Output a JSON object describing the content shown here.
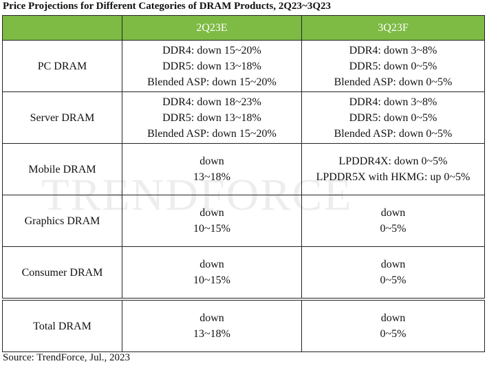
{
  "title": "Price Projections for Different Categories of DRAM Products, 2Q23~3Q23",
  "watermark": "TRENDFORCE",
  "table": {
    "header": [
      "2Q23E",
      "3Q23F"
    ],
    "rows": [
      {
        "label": "PC DRAM",
        "cells": [
          [
            "DDR4: down 15~20%",
            "DDR5: down 13~18%",
            "Blended ASP: down 15~20%"
          ],
          [
            "DDR4: down 3~8%",
            "DDR5: down 0~5%",
            "Blended ASP: down 0~5%"
          ]
        ]
      },
      {
        "label": "Server DRAM",
        "cells": [
          [
            "DDR4: down 18~23%",
            "DDR5: down 13~18%",
            "Blended ASP: down 15~20%"
          ],
          [
            "DDR4: down 3~8%",
            "DDR5: down 0~5%",
            "Blended ASP: down 0~5%"
          ]
        ]
      },
      {
        "label": "Mobile DRAM",
        "cells": [
          [
            "down",
            "13~18%"
          ],
          [
            "LPDDR4X: down 0~5%",
            "LPDDR5X with HKMG: up 0~5%"
          ]
        ]
      },
      {
        "label": "Graphics DRAM",
        "cells": [
          [
            "down",
            "10~15%"
          ],
          [
            "down",
            "0~5%"
          ]
        ]
      },
      {
        "label": "Consumer DRAM",
        "cells": [
          [
            "down",
            "10~15%"
          ],
          [
            "down",
            "0~5%"
          ]
        ]
      },
      {
        "label": "Total DRAM",
        "cells": [
          [
            "down",
            "13~18%"
          ],
          [
            "down",
            "0~5%"
          ]
        ]
      }
    ]
  },
  "source": "Source: TrendForce, Jul., 2023"
}
